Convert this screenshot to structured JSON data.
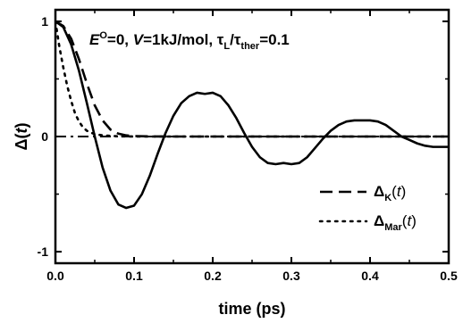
{
  "chart_data": {
    "type": "line",
    "xlabel": "time (ps)",
    "ylabel": "Δ(t)",
    "xlim": [
      0.0,
      0.5
    ],
    "ylim": [
      -1.1,
      1.1
    ],
    "x_ticks": [
      "0.0",
      "0.1",
      "0.2",
      "0.3",
      "0.4",
      "0.5"
    ],
    "y_ticks": [
      "1",
      "0",
      "-1"
    ],
    "annotation": "E°=0, V=1kJ/mol, τL/τther=0.1",
    "legend_placement": "lower-right",
    "series": [
      {
        "name": "",
        "style": "solid",
        "x": [
          0.0,
          0.01,
          0.02,
          0.03,
          0.04,
          0.05,
          0.06,
          0.07,
          0.08,
          0.09,
          0.1,
          0.11,
          0.12,
          0.13,
          0.14,
          0.15,
          0.16,
          0.17,
          0.18,
          0.19,
          0.2,
          0.21,
          0.22,
          0.23,
          0.24,
          0.25,
          0.26,
          0.27,
          0.28,
          0.29,
          0.3,
          0.31,
          0.32,
          0.33,
          0.34,
          0.35,
          0.36,
          0.37,
          0.38,
          0.39,
          0.4,
          0.41,
          0.42,
          0.43,
          0.44,
          0.45,
          0.46,
          0.47,
          0.48,
          0.49,
          0.5
        ],
        "y": [
          1.0,
          0.95,
          0.8,
          0.57,
          0.29,
          0.0,
          -0.27,
          -0.47,
          -0.59,
          -0.62,
          -0.6,
          -0.5,
          -0.34,
          -0.15,
          0.03,
          0.18,
          0.29,
          0.35,
          0.38,
          0.37,
          0.38,
          0.35,
          0.27,
          0.16,
          0.03,
          -0.09,
          -0.18,
          -0.23,
          -0.24,
          -0.23,
          -0.24,
          -0.23,
          -0.18,
          -0.1,
          -0.02,
          0.05,
          0.1,
          0.13,
          0.14,
          0.14,
          0.14,
          0.13,
          0.1,
          0.05,
          0.0,
          -0.03,
          -0.06,
          -0.08,
          -0.09,
          -0.09,
          -0.09
        ]
      },
      {
        "name": "ΔK(t)",
        "style": "dash",
        "x": [
          0.0,
          0.01,
          0.02,
          0.03,
          0.04,
          0.05,
          0.06,
          0.07,
          0.08,
          0.09,
          0.1,
          0.12,
          0.15,
          0.2,
          0.3,
          0.4,
          0.5
        ],
        "y": [
          1.0,
          0.96,
          0.85,
          0.67,
          0.46,
          0.27,
          0.14,
          0.06,
          0.025,
          0.01,
          0.004,
          0.001,
          0.0,
          0.0,
          0.0,
          0.0,
          0.0
        ]
      },
      {
        "name": "ΔMar(t)",
        "style": "dot",
        "x": [
          0.0,
          0.005,
          0.01,
          0.015,
          0.02,
          0.025,
          0.03,
          0.035,
          0.04,
          0.05,
          0.06,
          0.08,
          0.1,
          0.2,
          0.3,
          0.4,
          0.5
        ],
        "y": [
          1.0,
          0.78,
          0.6,
          0.44,
          0.31,
          0.2,
          0.13,
          0.08,
          0.05,
          0.02,
          0.01,
          0.002,
          0.0,
          0.0,
          0.0,
          0.0,
          0.0
        ]
      }
    ]
  }
}
